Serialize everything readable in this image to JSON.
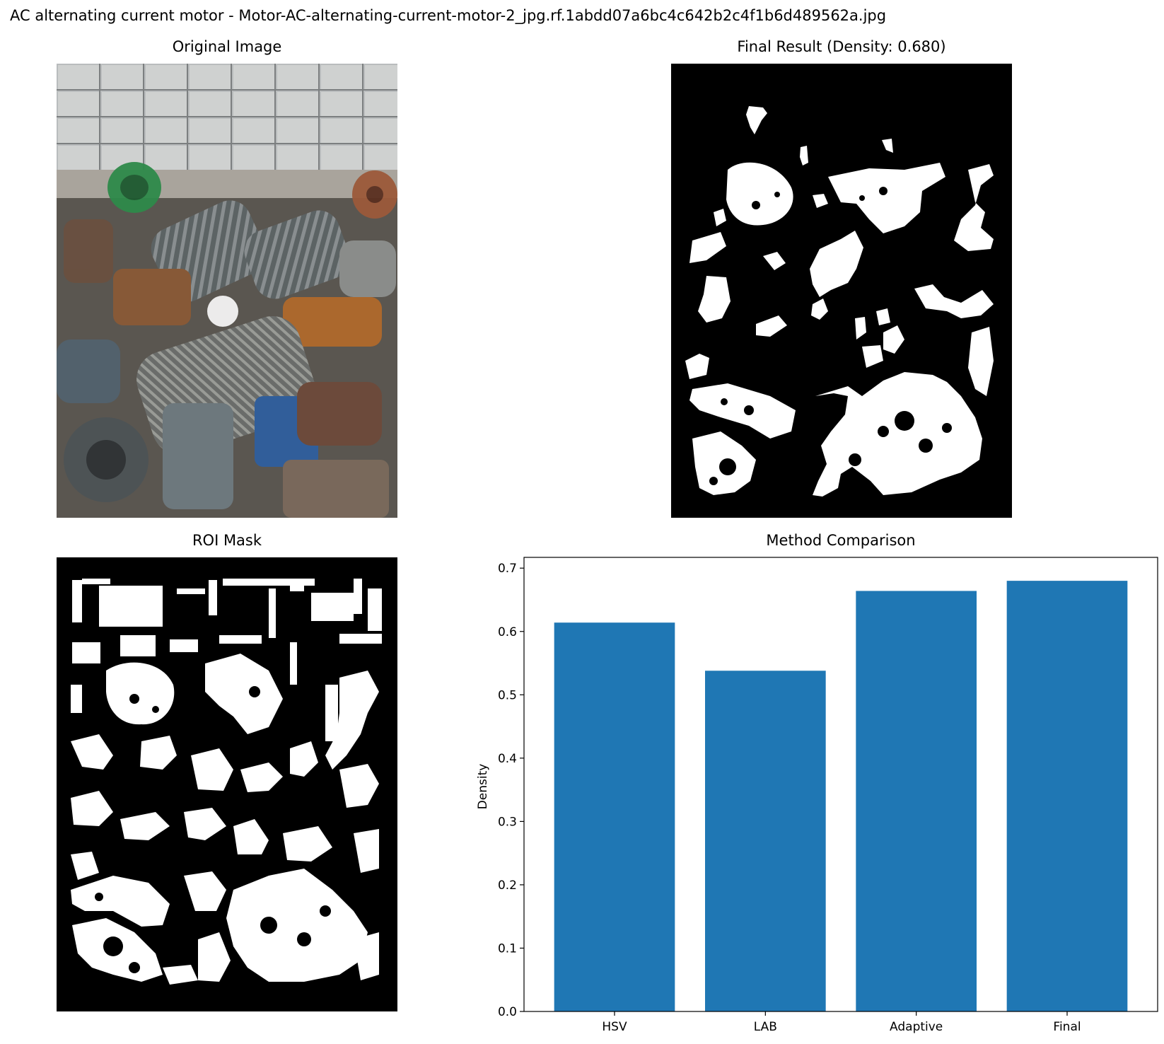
{
  "figure": {
    "suptitle": "AC alternating current motor - Motor-AC-alternating-current-motor-2_jpg.rf.1abdd07a6bc4c642b2c4f1b6d489562a.jpg"
  },
  "panels": {
    "original": {
      "title": "Original Image"
    },
    "final": {
      "title": "Final Result (Density: 0.680)"
    },
    "roi": {
      "title": "ROI Mask"
    }
  },
  "colors": {
    "bar": "#1f77b4",
    "mask_background": "#000000",
    "mask_foreground": "#ffffff"
  },
  "chart_data": {
    "type": "bar",
    "title": "Method Comparison",
    "xlabel": "",
    "ylabel": "Density",
    "categories": [
      "HSV",
      "LAB",
      "Adaptive",
      "Final"
    ],
    "values": [
      0.614,
      0.538,
      0.664,
      0.68
    ],
    "ylim": [
      0,
      0.717
    ],
    "yticks": [
      "0.0",
      "0.1",
      "0.2",
      "0.3",
      "0.4",
      "0.5",
      "0.6",
      "0.7"
    ],
    "grid": false,
    "legend": "none"
  }
}
